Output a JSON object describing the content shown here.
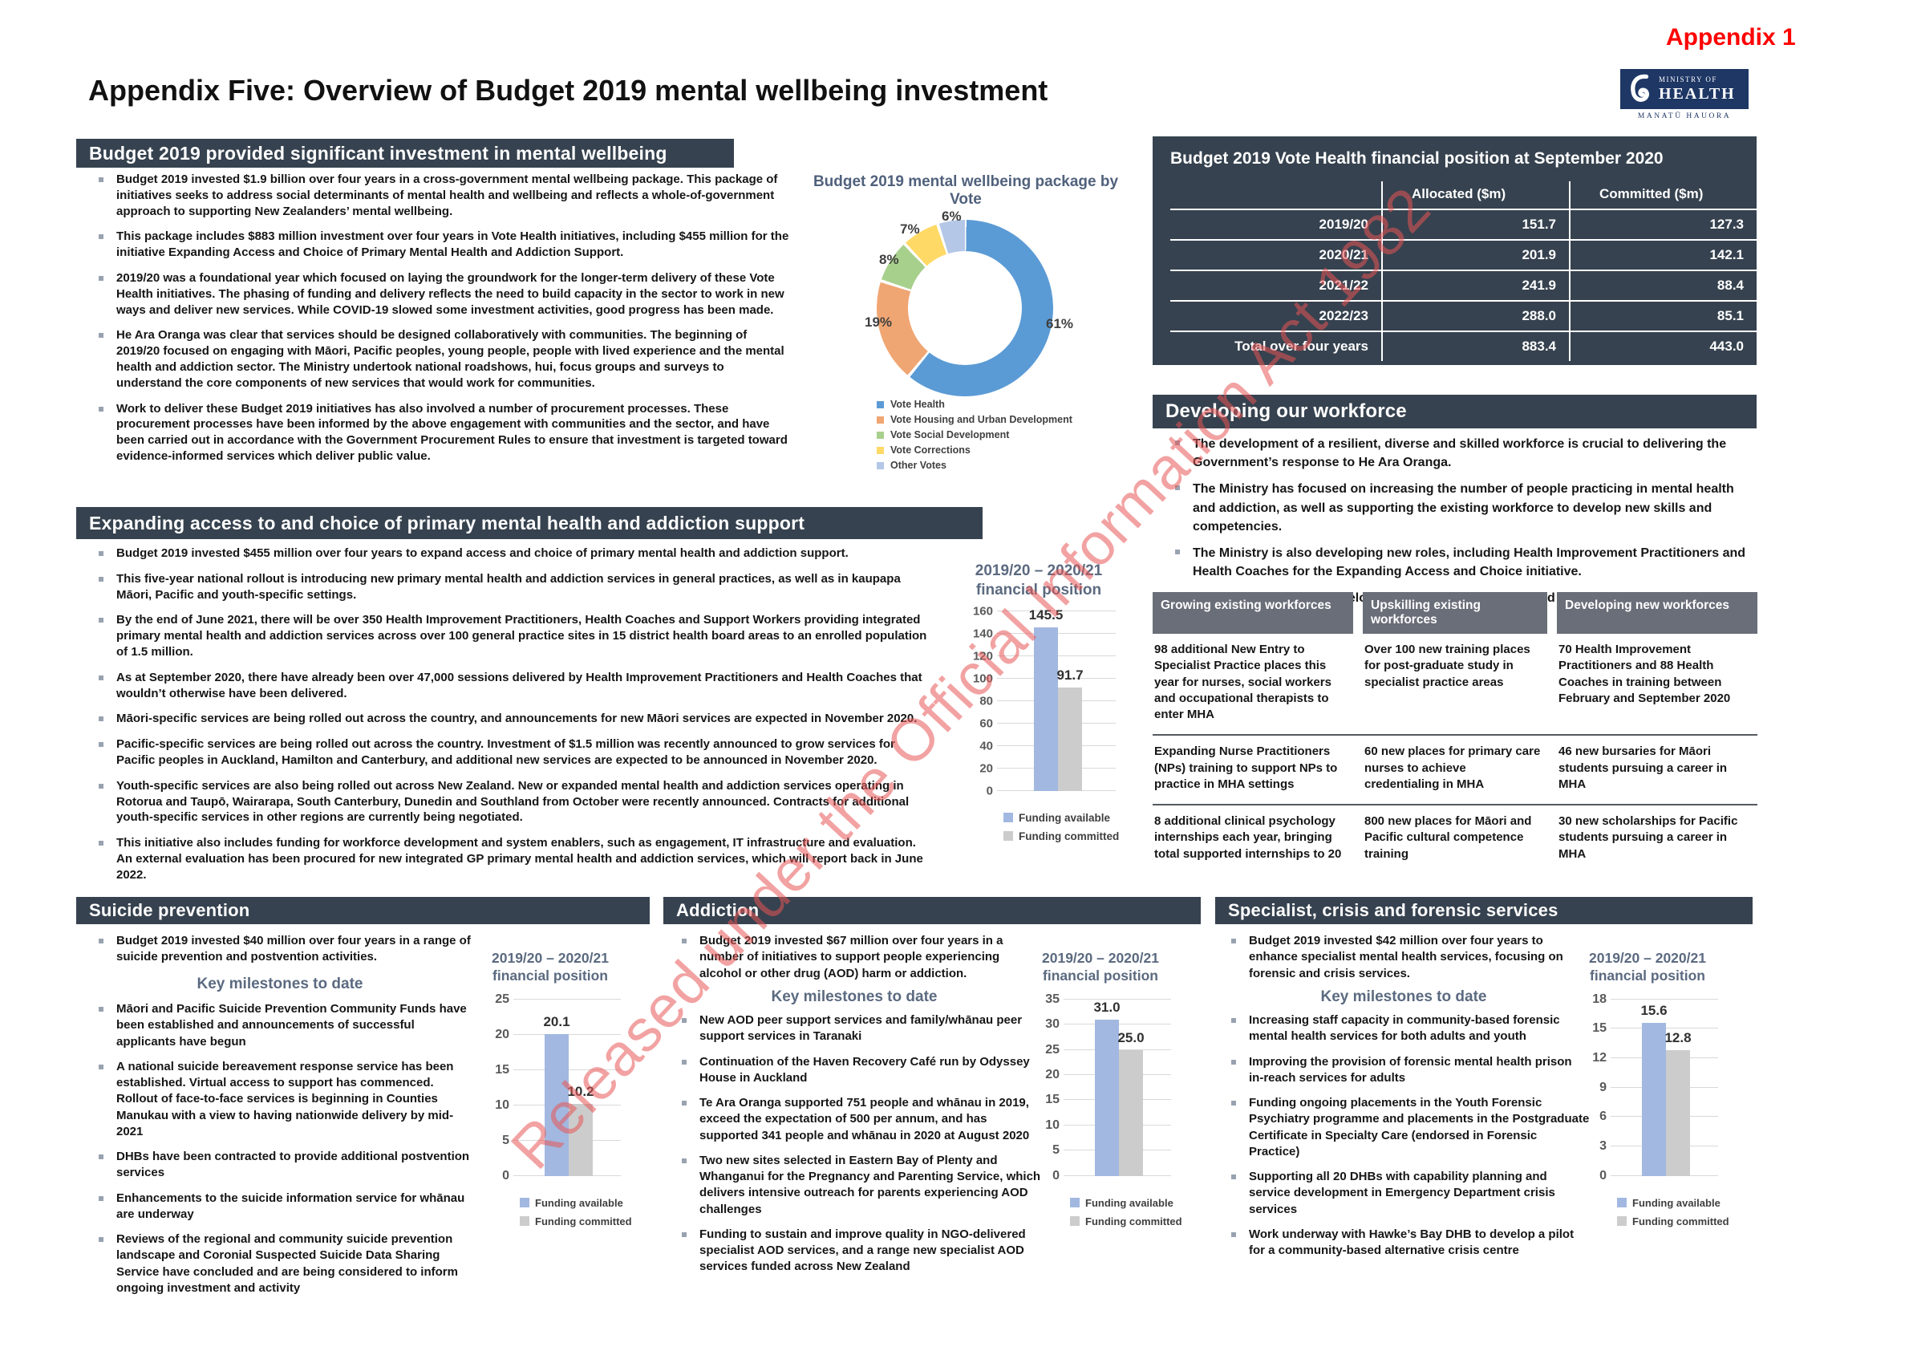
{
  "page": {
    "appendix_label": "Appendix 1",
    "title": "Appendix Five: Overview of Budget 2019 mental wellbeing investment",
    "watermark": "Released under the Official Information Act 1982"
  },
  "logo": {
    "line1": "MINISTRY OF",
    "line2": "HEALTH",
    "line3": "MANATŪ HAUORA"
  },
  "colors": {
    "section_bar": "#36424F",
    "table_header_gray": "#6A6E79",
    "bar_blue": "#A2B8E0",
    "bar_gray": "#CCCCCC",
    "accent_red": "#FF0000",
    "heading_blue_gray": "#5B6A80"
  },
  "sections": {
    "investment": {
      "header": "Budget 2019 provided significant investment in mental wellbeing",
      "bullets": [
        "Budget 2019 invested $1.9 billion over four years in a cross-government mental wellbeing package. This package of initiatives seeks to address social determinants of mental health and wellbeing and reflects a whole-of-government approach to supporting New Zealanders’ mental wellbeing.",
        "This package includes $883 million investment over four years in Vote Health initiatives, including $455 million for the initiative Expanding Access and Choice of Primary Mental Health and Addiction Support.",
        "2019/20 was a foundational year which focused on laying the groundwork for the longer-term delivery of these Vote Health initiatives. The phasing of funding and delivery reflects the need to build capacity in the sector to work in new ways and deliver new services. While COVID-19 slowed some investment activities, good progress has been made.",
        "He Ara Oranga was clear that services should be designed collaboratively with communities. The beginning of 2019/20 focused on engaging with Māori, Pacific peoples, young people, people with lived experience and the mental health and addiction sector. The Ministry undertook national roadshows, hui, focus groups and surveys to understand the core components of new services that would work for communities.",
        "Work to deliver these Budget 2019 initiatives has also involved a number of procurement processes. These procurement processes have been informed by the above engagement with communities and the sector, and have been carried out in accordance with the Government Procurement Rules to ensure that investment is targeted toward evidence-informed services which deliver public value."
      ]
    },
    "fin_position": {
      "header": "Budget 2019 Vote Health financial position at September 2020",
      "col_labels": [
        "Allocated ($m)",
        "Committed ($m)"
      ],
      "rows": [
        {
          "label": "2019/20",
          "allocated": "151.7",
          "committed": "127.3"
        },
        {
          "label": "2020/21",
          "allocated": "201.9",
          "committed": "142.1"
        },
        {
          "label": "2021/22",
          "allocated": "241.9",
          "committed": "88.4"
        },
        {
          "label": "2022/23",
          "allocated": "288.0",
          "committed": "85.1"
        },
        {
          "label": "Total over four years",
          "allocated": "883.4",
          "committed": "443.0"
        }
      ]
    },
    "workforce": {
      "header": "Developing our workforce",
      "bullets": [
        "The development of a resilient, diverse and skilled workforce is crucial to delivering the Government’s response to He Ara Oranga.",
        "The Ministry has focused on increasing the number of people practicing in mental health and addiction, as well as supporting the existing workforce to develop new skills and competencies.",
        "The Ministry is also developing new roles, including Health Improvement Practitioners and Health Coaches for the Expanding Access and Choice initiative.",
        "In 2019/20, workforce development investment has focused on three key areas:"
      ],
      "table": {
        "headers": [
          "Growing existing workforces",
          "Upskilling existing workforces",
          "Developing new workforces"
        ],
        "rows": [
          [
            "98 additional New Entry to Specialist Practice places this year for nurses, social workers and occupational therapists to enter MHA",
            "Over 100 new training places for post-graduate study in specialist practice areas",
            "70 Health Improvement Practitioners and 88 Health Coaches in training between February and September 2020"
          ],
          [
            "Expanding Nurse Practitioners (NPs) training to support NPs to practice in MHA settings",
            "60 new places for primary care nurses to achieve credentialing in MHA",
            "46 new bursaries for Māori students pursuing a career in MHA"
          ],
          [
            "8 additional clinical psychology internships each year, bringing total supported internships to 20",
            "800 new places for Māori and Pacific cultural competence training",
            "30 new scholarships for Pacific students pursuing a career in MHA"
          ]
        ]
      }
    },
    "expanding": {
      "header": "Expanding access to and choice of primary mental health and addiction support",
      "bullets": [
        "Budget 2019 invested $455 million over four years to expand access and choice of primary mental health and addiction support.",
        "This five-year national rollout is introducing new primary mental health and addiction services in general practices, as well as in kaupapa Māori, Pacific and youth-specific settings.",
        "By the end of June 2021, there will be over 350 Health Improvement Practitioners, Health Coaches and Support Workers providing integrated primary mental health and addiction services across over 100 general practice sites in 15 district health board areas to an enrolled population of 1.5 million.",
        "As at September 2020, there have already been over 47,000 sessions delivered by Health Improvement Practitioners and Health Coaches that wouldn’t otherwise have been delivered.",
        "Māori-specific services are being rolled out across the country, and announcements for new Māori services are expected in November 2020.",
        "Pacific-specific services are being rolled out across the country. Investment of $1.5 million was recently announced to grow services for Pacific peoples in Auckland, Hamilton and Canterbury, and additional new services are expected to be announced in November 2020.",
        "Youth-specific services are also being rolled out across New Zealand. New or expanded mental health and addiction services operating in Rotorua and Taupō, Wairarapa, South Canterbury, Dunedin and Southland from October were recently announced. Contracts for additional youth-specific services in other regions are currently being negotiated.",
        "This initiative also includes funding for workforce development and system enablers, such as engagement, IT infrastructure and evaluation. An external evaluation has been procured for new integrated GP primary mental health and addiction services, which will report back in June 2022."
      ]
    },
    "suicide": {
      "header": "Suicide prevention",
      "intro": "Budget 2019 invested $40 million over four years in a range of suicide prevention and postvention activities.",
      "milestones_heading": "Key milestones to date",
      "bullets": [
        "Māori and Pacific Suicide Prevention Community Funds have been established and announcements of successful applicants have begun",
        "A national suicide bereavement response service has been established. Virtual access to support has commenced. Rollout of face-to-face services is beginning in Counties Manukau with a view to having nationwide delivery by mid-2021",
        "DHBs have been contracted to provide additional postvention services",
        "Enhancements to the suicide information service for whānau are underway",
        "Reviews of the regional and community suicide prevention landscape and Coronial Suspected Suicide Data Sharing Service have concluded and are being considered to inform ongoing investment and activity"
      ]
    },
    "addiction": {
      "header": "Addiction",
      "intro": "Budget 2019 invested $67 million over four years in a number of initiatives to support people experiencing alcohol or other drug (AOD) harm or addiction.",
      "milestones_heading": "Key milestones to date",
      "bullets": [
        "New AOD peer support services and family/whānau peer support services in Taranaki",
        "Continuation of the Haven Recovery Café run by Odyssey House in Auckland",
        "Te Ara Oranga supported 751 people and whānau in 2019, exceed the expectation of 500 per annum, and has supported 341 people and whānau in 2020 at August 2020",
        "Two new sites selected in Eastern Bay of Plenty and Whanganui for the Pregnancy and Parenting Service, which delivers intensive outreach for parents experiencing AOD challenges",
        "Funding to sustain and improve quality in NGO-delivered specialist AOD services, and a range new specialist AOD services funded across New Zealand"
      ]
    },
    "specialist": {
      "header": "Specialist, crisis and forensic services",
      "intro": "Budget 2019 invested $42 million over four years to enhance specialist mental health services, focusing on forensic and crisis services.",
      "milestones_heading": "Key milestones to date",
      "bullets": [
        "Increasing staff capacity in community-based forensic mental health services for both adults and youth",
        "Improving the provision of forensic mental health prison in-reach services for adults",
        "Funding ongoing placements in the Youth Forensic Psychiatry programme and placements in the Postgraduate Certificate in Specialty Care (endorsed in Forensic Practice)",
        "Supporting all 20 DHBs with capability planning and service development in Emergency Department crisis services",
        "Work underway with Hawke’s Bay DHB to develop a pilot for a community-based alternative crisis centre"
      ]
    }
  },
  "donut": {
    "title": "Budget 2019 mental wellbeing package by Vote",
    "slices": [
      {
        "label": "Vote Health",
        "value": 61,
        "color": "#5B9BD5"
      },
      {
        "label": "Vote Housing and Urban Development",
        "value": 19,
        "color": "#F0A673"
      },
      {
        "label": "Vote Social Development",
        "value": 8,
        "color": "#A8D08D"
      },
      {
        "label": "Vote Corrections",
        "value": 7,
        "color": "#FFD966"
      },
      {
        "label": "Other Votes",
        "value": 6,
        "color": "#B4C7E7"
      }
    ]
  },
  "charts": {
    "title_line1": "2019/20 – 2020/21",
    "title_line2": "financial position",
    "legend": [
      "Funding available",
      "Funding committed"
    ],
    "bar_colors": [
      "#A2B8E0",
      "#CCCCCC"
    ],
    "items": [
      {
        "id": "expanding",
        "ymax": 160,
        "step": 20,
        "values": [
          145.5,
          91.7
        ],
        "labels": [
          "145.5",
          "91.7"
        ]
      },
      {
        "id": "suicide",
        "ymax": 25,
        "step": 5,
        "values": [
          20.1,
          10.2
        ],
        "labels": [
          "20.1",
          "10.2"
        ]
      },
      {
        "id": "addiction",
        "ymax": 35,
        "step": 5,
        "values": [
          31.0,
          25.0
        ],
        "labels": [
          "31.0",
          "25.0"
        ]
      },
      {
        "id": "specialist",
        "ymax": 18,
        "step": 3,
        "values": [
          15.6,
          12.8
        ],
        "labels": [
          "15.6",
          "12.8"
        ]
      }
    ]
  },
  "chart_data": [
    {
      "type": "pie",
      "title": "Budget 2019 mental wellbeing package by Vote",
      "labels": [
        "Vote Health",
        "Vote Housing and Urban Development",
        "Vote Social Development",
        "Vote Corrections",
        "Other Votes"
      ],
      "values": [
        61,
        19,
        8,
        7,
        6
      ],
      "unit": "%",
      "legend_position": "bottom",
      "style": "donut"
    },
    {
      "type": "bar",
      "title": "2019/20 – 2020/21 financial position",
      "section": "Expanding access to and choice of primary mental health and addiction support",
      "categories": [
        "Funding available",
        "Funding committed"
      ],
      "values": [
        145.5,
        91.7
      ],
      "ylim": [
        0,
        160
      ],
      "ytick_step": 20,
      "grid": true,
      "legend_position": "bottom"
    },
    {
      "type": "bar",
      "title": "2019/20 – 2020/21 financial position",
      "section": "Suicide prevention",
      "categories": [
        "Funding available",
        "Funding committed"
      ],
      "values": [
        20.1,
        10.2
      ],
      "ylim": [
        0,
        25
      ],
      "ytick_step": 5,
      "grid": true,
      "legend_position": "bottom"
    },
    {
      "type": "bar",
      "title": "2019/20 – 2020/21 financial position",
      "section": "Addiction",
      "categories": [
        "Funding available",
        "Funding committed"
      ],
      "values": [
        31.0,
        25.0
      ],
      "ylim": [
        0,
        35
      ],
      "ytick_step": 5,
      "grid": true,
      "legend_position": "bottom"
    },
    {
      "type": "bar",
      "title": "2019/20 – 2020/21 financial position",
      "section": "Specialist, crisis and forensic services",
      "categories": [
        "Funding available",
        "Funding committed"
      ],
      "values": [
        15.6,
        12.8
      ],
      "ylim": [
        0,
        18
      ],
      "ytick_step": 3,
      "grid": true,
      "legend_position": "bottom"
    }
  ]
}
